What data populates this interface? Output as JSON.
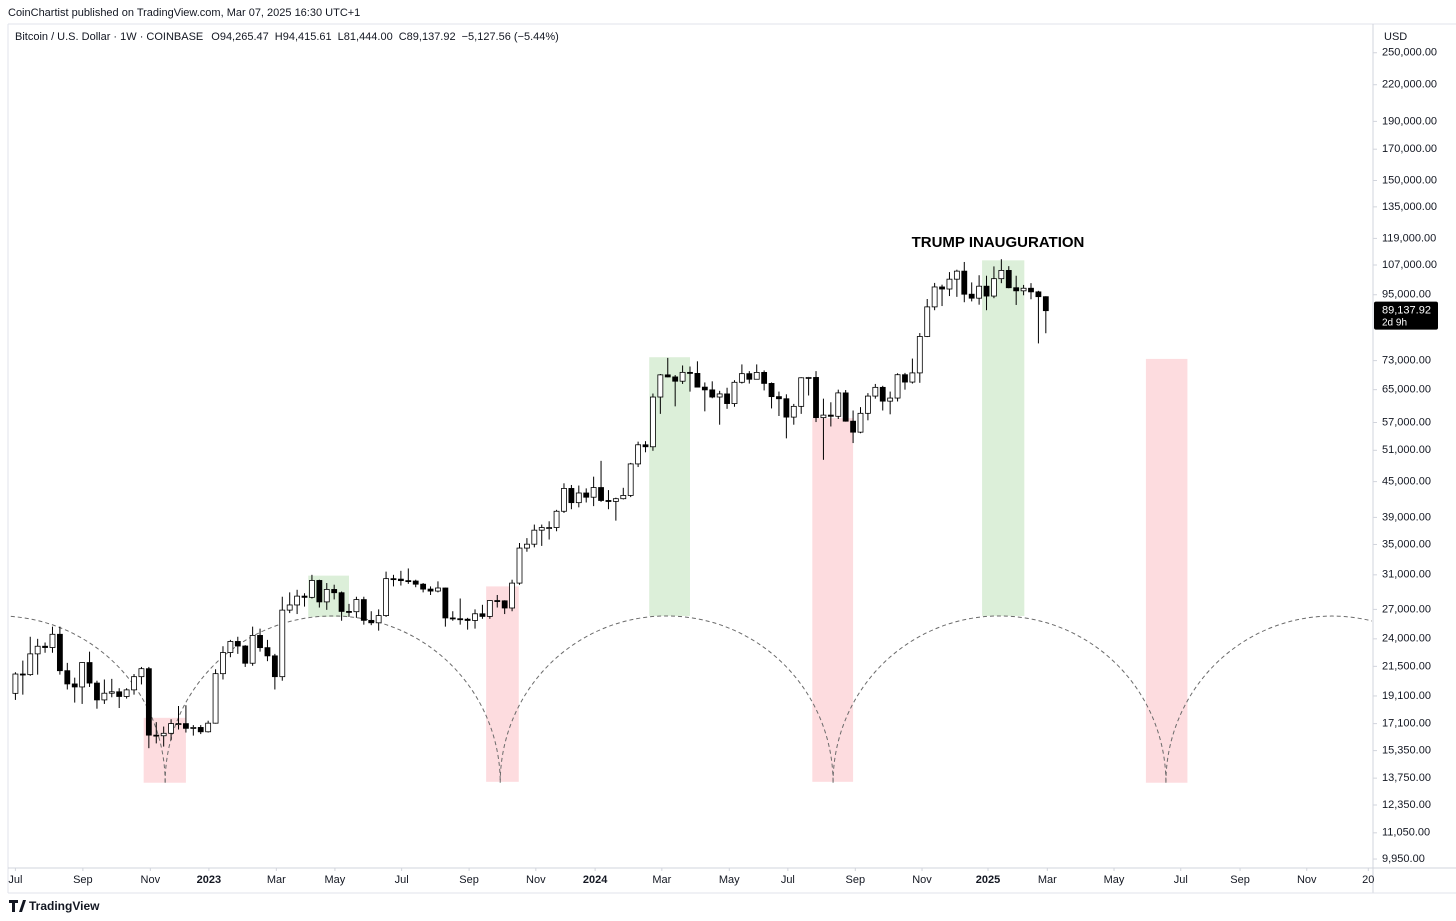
{
  "chart_data": {
    "type": "candlestick",
    "publisher": "CoinChartist published on TradingView.com, Mar 07, 2025 16:30 UTC+1",
    "symbol": "Bitcoin / U.S. Dollar · 1W · COINBASE",
    "ohlc_labels": [
      "O94,265.47",
      "H94,415.61",
      "L81,444.00",
      "C89,137.92"
    ],
    "change_label": "−5,127.56 (−5.44%)",
    "currency": "USD",
    "annotation": "TRUMP INAUGURATION",
    "last_price_label": "89,137.92",
    "countdown": "2d 9h",
    "brand": "TradingView",
    "log_scale": true,
    "up_color": "#ffffff",
    "down_color": "#000000",
    "ylim": [
      9600,
      276000
    ],
    "xlim": [
      -1,
      183
    ],
    "yticks": [
      {
        "value": 250000,
        "label": "250,000.00"
      },
      {
        "value": 220000,
        "label": "220,000.00"
      },
      {
        "value": 190000,
        "label": "190,000.00"
      },
      {
        "value": 170000,
        "label": "170,000.00"
      },
      {
        "value": 150000,
        "label": "150,000.00"
      },
      {
        "value": 135000,
        "label": "135,000.00"
      },
      {
        "value": 119000,
        "label": "119,000.00"
      },
      {
        "value": 107000,
        "label": "107,000.00"
      },
      {
        "value": 95000,
        "label": "95,000.00"
      },
      {
        "value": 73000,
        "label": "73,000.00"
      },
      {
        "value": 65000,
        "label": "65,000.00"
      },
      {
        "value": 57000,
        "label": "57,000.00"
      },
      {
        "value": 51000,
        "label": "51,000.00"
      },
      {
        "value": 45000,
        "label": "45,000.00"
      },
      {
        "value": 39000,
        "label": "39,000.00"
      },
      {
        "value": 35000,
        "label": "35,000.00"
      },
      {
        "value": 31000,
        "label": "31,000.00"
      },
      {
        "value": 27000,
        "label": "27,000.00"
      },
      {
        "value": 24000,
        "label": "24,000.00"
      },
      {
        "value": 21500,
        "label": "21,500.00"
      },
      {
        "value": 19100,
        "label": "19,100.00"
      },
      {
        "value": 17100,
        "label": "17,100.00"
      },
      {
        "value": 15350,
        "label": "15,350.00"
      },
      {
        "value": 13750,
        "label": "13,750.00"
      },
      {
        "value": 12350,
        "label": "12,350.00"
      },
      {
        "value": 11050,
        "label": "11,050.00"
      },
      {
        "value": 9950,
        "label": "9,950.00"
      }
    ],
    "xticks": [
      {
        "value": 0,
        "label": "Jul"
      },
      {
        "value": 9.1,
        "label": "Sep"
      },
      {
        "value": 18.2,
        "label": "Nov"
      },
      {
        "value": 26.1,
        "label": "2023"
      },
      {
        "value": 35.2,
        "label": "Mar"
      },
      {
        "value": 43.1,
        "label": "May"
      },
      {
        "value": 52.1,
        "label": "Jul"
      },
      {
        "value": 61.2,
        "label": "Sep"
      },
      {
        "value": 70.2,
        "label": "Nov"
      },
      {
        "value": 78.2,
        "label": "2024"
      },
      {
        "value": 87.2,
        "label": "Mar"
      },
      {
        "value": 96.3,
        "label": "May"
      },
      {
        "value": 104.2,
        "label": "Jul"
      },
      {
        "value": 113.3,
        "label": "Sep"
      },
      {
        "value": 122.3,
        "label": "Nov"
      },
      {
        "value": 131.2,
        "label": "2025"
      },
      {
        "value": 139.2,
        "label": "Mar"
      },
      {
        "value": 148.2,
        "label": "May"
      },
      {
        "value": 157.2,
        "label": "Jul"
      },
      {
        "value": 165.2,
        "label": "Sep"
      },
      {
        "value": 174.2,
        "label": "Nov"
      },
      {
        "value": 182.5,
        "label": "20"
      }
    ],
    "zones": [
      {
        "color": "#fddcdf",
        "x": [
          17.3,
          23.0
        ],
        "y": [
          13500,
          17500
        ]
      },
      {
        "color": "#dcefd9",
        "x": [
          39.5,
          45.0
        ],
        "y": [
          26200,
          30900
        ]
      },
      {
        "color": "#fddcdf",
        "x": [
          63.5,
          67.9
        ],
        "y": [
          13550,
          29600
        ]
      },
      {
        "color": "#dcefd9",
        "x": [
          85.5,
          91.0
        ],
        "y": [
          26300,
          74000
        ]
      },
      {
        "color": "#fddcdf",
        "x": [
          107.5,
          113.0
        ],
        "y": [
          13550,
          58000
        ]
      },
      {
        "color": "#dcefd9",
        "x": [
          130.4,
          136.1
        ],
        "y": [
          26300,
          109000
        ]
      },
      {
        "color": "#fddcdf",
        "x": [
          152.5,
          158.1
        ],
        "y": [
          13500,
          73500
        ]
      }
    ],
    "cycle_arcs": {
      "color": "#6b6b6b",
      "troughs": [
        -24.6,
        20.2,
        65.4,
        110.3,
        155.2,
        200
      ],
      "peak": 26300,
      "trough": 13500
    },
    "ohlc": [
      [
        19300,
        21000,
        18800,
        20850
      ],
      [
        20850,
        22000,
        19200,
        20800
      ],
      [
        20800,
        24200,
        20700,
        22600
      ],
      [
        22600,
        24000,
        20800,
        23300
      ],
      [
        23300,
        23650,
        22700,
        23180
      ],
      [
        23180,
        25200,
        22700,
        24440
      ],
      [
        24440,
        25200,
        20800,
        21130
      ],
      [
        21130,
        21800,
        19600,
        20040
      ],
      [
        20040,
        20550,
        18600,
        19800
      ],
      [
        19800,
        21850,
        18500,
        21830
      ],
      [
        21830,
        22800,
        19800,
        20110
      ],
      [
        20110,
        20300,
        18150,
        18800
      ],
      [
        18800,
        20400,
        18500,
        19310
      ],
      [
        19310,
        20450,
        19000,
        19420
      ],
      [
        19420,
        19700,
        18200,
        19060
      ],
      [
        19060,
        19700,
        18900,
        19570
      ],
      [
        19570,
        20850,
        19200,
        20630
      ],
      [
        20630,
        21450,
        20000,
        21300
      ],
      [
        21300,
        21450,
        15500,
        16330
      ],
      [
        16330,
        17200,
        15800,
        16290
      ],
      [
        16290,
        16900,
        15600,
        16450
      ],
      [
        16450,
        17400,
        16000,
        17100
      ],
      [
        17100,
        18350,
        16700,
        17100
      ],
      [
        17100,
        18400,
        16500,
        16780
      ],
      [
        16780,
        17000,
        16300,
        16840
      ],
      [
        16840,
        17000,
        16400,
        16550
      ],
      [
        16550,
        17300,
        16500,
        17130
      ],
      [
        17130,
        21250,
        17100,
        20880
      ],
      [
        20880,
        23300,
        20400,
        22720
      ],
      [
        22720,
        23900,
        22300,
        23750
      ],
      [
        23750,
        24200,
        22600,
        23320
      ],
      [
        23320,
        23400,
        21450,
        21770
      ],
      [
        21770,
        25200,
        21550,
        24330
      ],
      [
        24330,
        25000,
        22800,
        23170
      ],
      [
        23170,
        23900,
        21950,
        22420
      ],
      [
        22420,
        22600,
        19600,
        20630
      ],
      [
        20630,
        28400,
        20300,
        26920
      ],
      [
        26920,
        28900,
        26600,
        27480
      ],
      [
        27480,
        29200,
        26500,
        28470
      ],
      [
        28470,
        28800,
        27300,
        28330
      ],
      [
        28330,
        31000,
        28200,
        30310
      ],
      [
        30310,
        30400,
        27200,
        27820
      ],
      [
        27820,
        30000,
        26950,
        29240
      ],
      [
        29240,
        29800,
        28100,
        28860
      ],
      [
        28860,
        29000,
        25800,
        26780
      ],
      [
        26780,
        27600,
        26200,
        26750
      ],
      [
        26750,
        28400,
        26100,
        28080
      ],
      [
        28080,
        28400,
        25400,
        25840
      ],
      [
        25840,
        26800,
        25350,
        25590
      ],
      [
        25590,
        27000,
        24800,
        26340
      ],
      [
        26340,
        31400,
        26200,
        30530
      ],
      [
        30530,
        31000,
        29600,
        30470
      ],
      [
        30470,
        31500,
        29700,
        30290
      ],
      [
        30290,
        31800,
        29900,
        30240
      ],
      [
        30240,
        30400,
        29500,
        29860
      ],
      [
        29860,
        30000,
        28900,
        29280
      ],
      [
        29280,
        29600,
        28600,
        29050
      ],
      [
        29050,
        30200,
        28900,
        29410
      ],
      [
        29410,
        29450,
        25200,
        26090
      ],
      [
        26090,
        26800,
        25800,
        26010
      ],
      [
        26010,
        28200,
        25400,
        25960
      ],
      [
        25960,
        26100,
        24900,
        25830
      ],
      [
        25830,
        27000,
        25000,
        26530
      ],
      [
        26530,
        27500,
        26000,
        26250
      ],
      [
        26250,
        28000,
        26000,
        27970
      ],
      [
        27970,
        28600,
        27200,
        27940
      ],
      [
        27940,
        28000,
        26500,
        27150
      ],
      [
        27150,
        30400,
        26800,
        29990
      ],
      [
        29990,
        35200,
        29800,
        34500
      ],
      [
        34500,
        35900,
        34000,
        35040
      ],
      [
        35040,
        37900,
        34600,
        37060
      ],
      [
        37060,
        37900,
        34800,
        37450
      ],
      [
        37450,
        38400,
        35700,
        37450
      ],
      [
        37450,
        40200,
        36900,
        39970
      ],
      [
        39970,
        44700,
        39700,
        43790
      ],
      [
        43790,
        44400,
        40300,
        41370
      ],
      [
        41370,
        44300,
        40600,
        43000
      ],
      [
        43000,
        43800,
        41400,
        42280
      ],
      [
        42280,
        45900,
        40800,
        43950
      ],
      [
        43950,
        48900,
        41500,
        41730
      ],
      [
        41730,
        43500,
        40300,
        41580
      ],
      [
        41580,
        42200,
        38500,
        42030
      ],
      [
        42030,
        43900,
        41900,
        42580
      ],
      [
        42580,
        48500,
        42300,
        48300
      ],
      [
        48300,
        52800,
        47700,
        52140
      ],
      [
        52140,
        52900,
        50600,
        51730
      ],
      [
        51730,
        64000,
        50900,
        63110
      ],
      [
        63110,
        69200,
        59000,
        68960
      ],
      [
        68960,
        73800,
        68300,
        68390
      ],
      [
        68390,
        68900,
        60800,
        67230
      ],
      [
        67230,
        71600,
        66500,
        69650
      ],
      [
        69650,
        71300,
        64500,
        69360
      ],
      [
        69360,
        72800,
        65600,
        65660
      ],
      [
        65660,
        66900,
        59600,
        64940
      ],
      [
        64940,
        67200,
        62800,
        63110
      ],
      [
        63110,
        64700,
        56500,
        63900
      ],
      [
        63900,
        65500,
        60200,
        61480
      ],
      [
        61480,
        67500,
        60700,
        66940
      ],
      [
        66940,
        71900,
        66600,
        69290
      ],
      [
        69290,
        70000,
        66600,
        67760
      ],
      [
        67760,
        71900,
        67700,
        69640
      ],
      [
        69640,
        70200,
        64800,
        66640
      ],
      [
        66640,
        66900,
        60300,
        63210
      ],
      [
        63210,
        64500,
        58500,
        62680
      ],
      [
        62680,
        63800,
        53500,
        58240
      ],
      [
        58240,
        61400,
        56500,
        60800
      ],
      [
        60800,
        68300,
        59000,
        68160
      ],
      [
        68160,
        68400,
        63500,
        68250
      ],
      [
        68250,
        70000,
        57100,
        58120
      ],
      [
        58120,
        62700,
        49100,
        58710
      ],
      [
        58710,
        61800,
        56100,
        58430
      ],
      [
        58430,
        65000,
        57800,
        64160
      ],
      [
        64160,
        64900,
        57200,
        57300
      ],
      [
        57300,
        59800,
        52500,
        54840
      ],
      [
        54840,
        60600,
        54600,
        59130
      ],
      [
        59130,
        64100,
        57500,
        63350
      ],
      [
        63350,
        66500,
        62700,
        65600
      ],
      [
        65600,
        66000,
        59800,
        62080
      ],
      [
        62080,
        64500,
        58900,
        62850
      ],
      [
        62850,
        69400,
        62000,
        69000
      ],
      [
        69000,
        69500,
        65000,
        67000
      ],
      [
        67000,
        73600,
        66600,
        69500
      ],
      [
        69500,
        81500,
        66800,
        80400
      ],
      [
        80400,
        93400,
        80200,
        90500
      ],
      [
        90500,
        99600,
        89300,
        98000
      ],
      [
        98000,
        98900,
        90800,
        97200
      ],
      [
        97200,
        104000,
        94500,
        101100
      ],
      [
        101100,
        105000,
        94200,
        104400
      ],
      [
        104400,
        108300,
        92200,
        95200
      ],
      [
        95200,
        99800,
        92500,
        93700
      ],
      [
        93700,
        102700,
        91300,
        98300
      ],
      [
        98300,
        102500,
        89300,
        94500
      ],
      [
        94500,
        106400,
        93700,
        101300
      ],
      [
        101300,
        109500,
        99500,
        104700
      ],
      [
        104700,
        106500,
        97500,
        97700
      ],
      [
        97700,
        102500,
        91200,
        96500
      ],
      [
        96500,
        98800,
        94800,
        97500
      ],
      [
        97500,
        99500,
        93300,
        96100
      ],
      [
        96100,
        96500,
        78200,
        94270
      ],
      [
        94265.47,
        94415.61,
        81444,
        89137.92
      ]
    ]
  }
}
